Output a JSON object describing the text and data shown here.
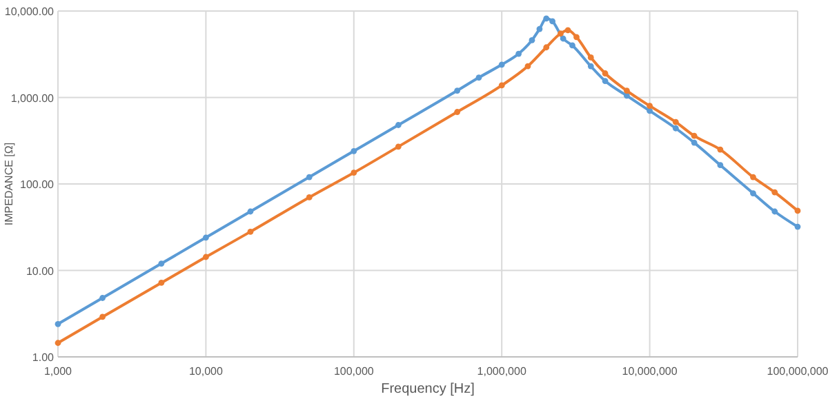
{
  "chart_data": {
    "type": "line",
    "xlabel": "Frequency [Hz]",
    "ylabel": "IMPEDANCE [Ω]",
    "log": "xy",
    "grid": true,
    "marker": "circle",
    "xlim": [
      1000,
      100000000
    ],
    "ylim": [
      1,
      10000
    ],
    "xticks": [
      {
        "value": 1000,
        "label": "1,000"
      },
      {
        "value": 10000,
        "label": "10,000"
      },
      {
        "value": 100000,
        "label": "100,000"
      },
      {
        "value": 1000000,
        "label": "1,000,000"
      },
      {
        "value": 10000000,
        "label": "10,000,000"
      },
      {
        "value": 100000000,
        "label": "100,000,000"
      }
    ],
    "yticks": [
      {
        "value": 1,
        "label": "1.00"
      },
      {
        "value": 10,
        "label": "10.00"
      },
      {
        "value": 100,
        "label": "100.00"
      },
      {
        "value": 1000,
        "label": "1,000.00"
      },
      {
        "value": 10000,
        "label": "10,000.00"
      }
    ],
    "series": [
      {
        "color": "#5b9bd5",
        "x": [
          1000,
          2000,
          5000,
          10000,
          20000,
          50000,
          100000,
          200000,
          500000,
          700000,
          1000000,
          1300000,
          1600000,
          1800000,
          2000000,
          2200000,
          2600000,
          3000000,
          4000000,
          5000000,
          7000000,
          10000000,
          15000000,
          20000000,
          30000000,
          50000000,
          70000000,
          100000000
        ],
        "values": [
          2.4,
          4.8,
          12,
          24,
          48,
          120,
          240,
          480,
          1200,
          1700,
          2400,
          3200,
          4600,
          6200,
          8200,
          7600,
          4800,
          4000,
          2300,
          1550,
          1050,
          700,
          440,
          300,
          165,
          78,
          48,
          32
        ]
      },
      {
        "color": "#ed7d31",
        "x": [
          1000,
          2000,
          5000,
          10000,
          20000,
          50000,
          100000,
          200000,
          500000,
          1000000,
          1500000,
          2000000,
          2500000,
          2800000,
          3200000,
          4000000,
          5000000,
          7000000,
          10000000,
          15000000,
          20000000,
          30000000,
          50000000,
          70000000,
          100000000
        ],
        "values": [
          1.45,
          2.9,
          7.2,
          14.3,
          28,
          70,
          135,
          270,
          680,
          1380,
          2300,
          3800,
          5500,
          6000,
          5000,
          2900,
          1900,
          1200,
          800,
          520,
          360,
          250,
          120,
          80,
          49
        ]
      }
    ]
  }
}
